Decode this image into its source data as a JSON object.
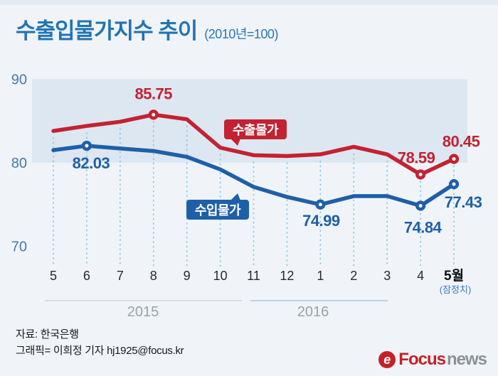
{
  "header": {
    "title": "수출입물가지수 추이",
    "subtitle": "(2010년=100)"
  },
  "chart_data": {
    "type": "line",
    "title": "수출입물가지수 추이",
    "unit_note": "(2010년=100)",
    "x_categories": [
      "5",
      "6",
      "7",
      "8",
      "9",
      "10",
      "11",
      "12",
      "1",
      "2",
      "3",
      "4",
      "5월"
    ],
    "x_group_labels": [
      "2015",
      "2016"
    ],
    "last_tick_note": "(잠정치)",
    "yticks": [
      90,
      80,
      70
    ],
    "ylim": [
      68,
      91
    ],
    "highlight_band": [
      80,
      90
    ],
    "grid": "dashed-vertical-per-month",
    "legend_position": "bubbles-on-plot",
    "series": [
      {
        "id": "export",
        "name": "수출물가",
        "color": "#c32232",
        "values": [
          83.8,
          84.4,
          84.9,
          85.75,
          85.2,
          81.8,
          80.9,
          80.8,
          81.0,
          81.9,
          81.0,
          78.59,
          80.45
        ],
        "points": [
          {
            "i": 3,
            "label": "85.75",
            "dx": 0,
            "dy": -22
          },
          {
            "i": 11,
            "label": "78.59",
            "dx": -6,
            "dy": -16
          },
          {
            "i": 12,
            "label": "80.45",
            "dx": 10,
            "dy": -17
          }
        ]
      },
      {
        "id": "import",
        "name": "수입물가",
        "color": "#1f5fa8",
        "values": [
          81.5,
          82.03,
          81.7,
          81.4,
          80.7,
          79.2,
          77.1,
          75.9,
          74.99,
          76.0,
          76.0,
          74.84,
          77.43
        ],
        "points": [
          {
            "i": 1,
            "label": "82.03",
            "dx": 6,
            "dy": 32
          },
          {
            "i": 8,
            "label": "74.99",
            "dx": 1,
            "dy": 30
          },
          {
            "i": 11,
            "label": "74.84",
            "dx": 3,
            "dy": 38
          },
          {
            "i": 12,
            "label": "77.43",
            "dx": 13,
            "dy": 33
          }
        ]
      }
    ]
  },
  "colors": {
    "background": "#f0f4f8",
    "band": "#dde7f1",
    "line_red": "#c32232",
    "line_blue": "#1f5fa8",
    "dash": "#8ec6e4",
    "axis_label": "#4779ab",
    "rule_2015": "#c9d0d8",
    "rule_2016": "#9cbedd",
    "accent_blue": "#2273b5",
    "logo_red": "#c42127",
    "logo_gray": "#8b9198"
  },
  "footer": {
    "source": "자료: 한국은행",
    "credit": "그래픽= 이희정 기자 hj1925@focus.kr"
  },
  "logo": {
    "icon": "e",
    "brand": "Focus",
    "suffix": "news"
  }
}
